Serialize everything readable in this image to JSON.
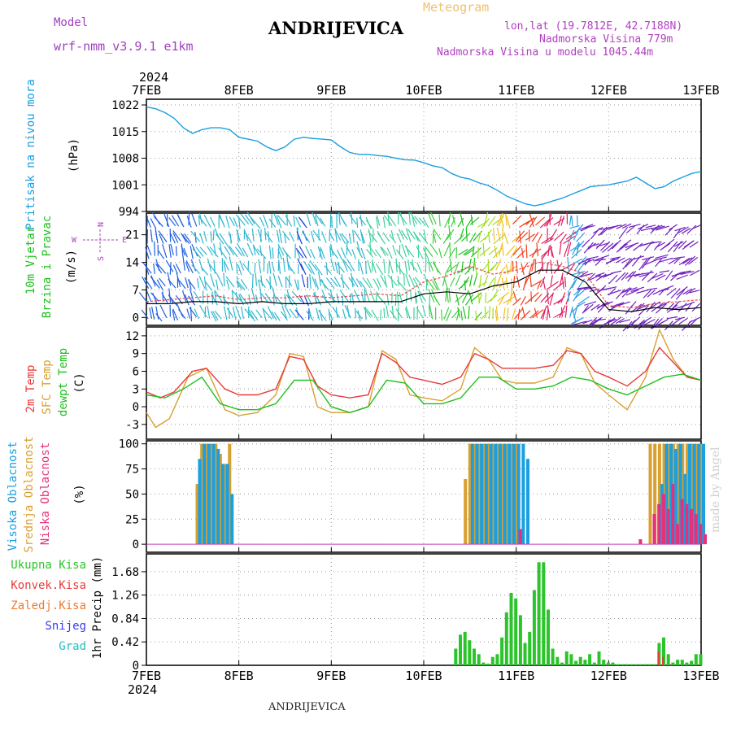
{
  "header": {
    "model_label": "Model",
    "model_name": "wrf-nmm_v3.9.1 e1km",
    "meteogram_label": "Meteogram",
    "location": "ANDRIJEVICA",
    "lonlat": "lon,lat (19.7812E, 42.7188N)",
    "elevation": "Nadmorska Visina 779m",
    "model_elevation": "Nadmorska Visina u modelu 1045.44m",
    "year": "2024",
    "footer_location": "ANDRIJEVICA",
    "credit": "made by Angel"
  },
  "colors": {
    "pressure": "#1a9fe0",
    "temp": "#e83a3a",
    "sfc": "#d9a030",
    "dewpt": "#1fbf1f",
    "rain": "#2bc42b",
    "conv": "#e83a3a",
    "freezing": "#f07a30",
    "snow": "#3a3af0",
    "hail": "#20c0c0",
    "cloud_high": "#1a9fe0",
    "cloud_mid": "#d9a030",
    "cloud_low": "#e8307a"
  },
  "chart_data": [
    {
      "type": "line",
      "panel": "pressure",
      "ylabels": [
        "Pritisak na nivou mora",
        "(hPa)"
      ],
      "x_ticks": [
        "7FEB",
        "8FEB",
        "9FEB",
        "10FEB",
        "11FEB",
        "12FEB",
        "13FEB"
      ],
      "y_ticks": [
        994,
        1001,
        1008,
        1015,
        1022
      ],
      "ylim": [
        994,
        1023.5
      ],
      "series": [
        {
          "name": "",
          "x": [
            0,
            0.1,
            0.2,
            0.3,
            0.4,
            0.5,
            0.6,
            0.7,
            0.8,
            0.9,
            1.0,
            1.1,
            1.2,
            1.3,
            1.4,
            1.5,
            1.6,
            1.7,
            1.8,
            1.9,
            2.0,
            2.1,
            2.2,
            2.3,
            2.4,
            2.5,
            2.6,
            2.7,
            2.8,
            2.9,
            3.0,
            3.1,
            3.2,
            3.3,
            3.4,
            3.5,
            3.6,
            3.7,
            3.8,
            3.9,
            4.0,
            4.1,
            4.2,
            4.3,
            4.4,
            4.5,
            4.6,
            4.7,
            4.8,
            4.9,
            5.0,
            5.1,
            5.2,
            5.3,
            5.4,
            5.5,
            5.6,
            5.7,
            5.8,
            5.9,
            6.0
          ],
          "values": [
            1021.5,
            1021,
            1020,
            1018.5,
            1016,
            1014.5,
            1015.5,
            1016,
            1016,
            1015.5,
            1013.5,
            1013,
            1012.5,
            1011,
            1010,
            1011,
            1013,
            1013.5,
            1013.2,
            1013,
            1012.8,
            1011,
            1009.5,
            1009,
            1009,
            1008.7,
            1008.5,
            1008,
            1007.6,
            1007.5,
            1006.8,
            1006,
            1005.5,
            1004,
            1003,
            1002.5,
            1001.5,
            1000.8,
            999.5,
            998,
            997,
            996,
            995.5,
            996,
            996.8,
            997.5,
            998.5,
            999.5,
            1000.5,
            1000.8,
            1001,
            1001.5,
            1002,
            1003,
            1001.5,
            1000,
            1000.5,
            1002,
            1003,
            1004,
            1004.5
          ]
        }
      ]
    },
    {
      "type": "line",
      "panel": "wind",
      "ylabels": [
        "10m Vjetar",
        "Brzina i Pravac",
        "(m/s)"
      ],
      "direction_legend": [
        "N",
        "S",
        "W",
        "E"
      ],
      "y_ticks": [
        0,
        7,
        14,
        21
      ],
      "ylim": [
        -2,
        26.5
      ],
      "series": [
        {
          "name": "",
          "x": [
            0,
            0.25,
            0.5,
            0.75,
            1.0,
            1.25,
            1.5,
            1.75,
            2.0,
            2.25,
            2.5,
            2.75,
            3.0,
            3.25,
            3.5,
            3.75,
            4.0,
            4.25,
            4.5,
            4.75,
            5.0,
            5.25,
            5.5,
            5.75,
            6.0
          ],
          "values": [
            4,
            4.5,
            5,
            5.5,
            4.5,
            5,
            5,
            5.5,
            5,
            5.5,
            6,
            5.5,
            9,
            10.5,
            13,
            11,
            12,
            14,
            13,
            11,
            3,
            2.5,
            3.5,
            4,
            4.5
          ]
        },
        {
          "name": "",
          "x": [
            0,
            0.25,
            0.5,
            0.75,
            1.0,
            1.25,
            1.5,
            1.75,
            2.0,
            2.25,
            2.5,
            2.75,
            3.0,
            3.25,
            3.5,
            3.75,
            4.0,
            4.25,
            4.5,
            4.75,
            5.0,
            5.25,
            5.5,
            5.75,
            6.0
          ],
          "values": [
            3.5,
            3.5,
            4,
            4,
            3.5,
            4,
            3.5,
            3.5,
            4,
            4,
            4,
            4,
            6,
            6.5,
            6,
            8,
            9,
            12,
            12,
            9,
            2,
            1.5,
            2.5,
            2,
            2.5
          ]
        }
      ]
    },
    {
      "type": "line",
      "panel": "temperature",
      "ylabels": [
        "2m Temp",
        "SFC Temp",
        "dewpt Temp",
        "(C)"
      ],
      "y_ticks": [
        -3,
        0,
        3,
        6,
        9,
        12
      ],
      "ylim": [
        -5.5,
        13.5
      ],
      "series": [
        {
          "name": "2m Temp",
          "x": [
            0,
            0.15,
            0.3,
            0.5,
            0.65,
            0.85,
            1.0,
            1.2,
            1.4,
            1.55,
            1.7,
            1.85,
            2.0,
            2.2,
            2.4,
            2.55,
            2.7,
            2.85,
            3.0,
            3.2,
            3.4,
            3.55,
            3.7,
            3.85,
            4.0,
            4.2,
            4.4,
            4.55,
            4.7,
            4.85,
            5.0,
            5.2,
            5.4,
            5.55,
            5.7,
            5.85,
            6.0
          ],
          "values": [
            2.5,
            1.5,
            2.5,
            6,
            6.5,
            3,
            2,
            2,
            3,
            8.5,
            8,
            3.5,
            2,
            1.5,
            2,
            9,
            7.5,
            5,
            4.5,
            3.8,
            5,
            9,
            8,
            6.5,
            6.5,
            6.5,
            7,
            9.5,
            9,
            6,
            5,
            3.5,
            6,
            10,
            7.5,
            5,
            4.5
          ]
        },
        {
          "name": "SFC Temp",
          "x": [
            0,
            0.1,
            0.25,
            0.45,
            0.65,
            0.85,
            1.0,
            1.2,
            1.4,
            1.55,
            1.7,
            1.85,
            2.0,
            2.2,
            2.4,
            2.55,
            2.7,
            2.85,
            3.0,
            3.2,
            3.4,
            3.55,
            3.7,
            3.85,
            4.0,
            4.2,
            4.4,
            4.55,
            4.7,
            4.85,
            5.0,
            5.2,
            5.4,
            5.55,
            5.7,
            5.85,
            6.0
          ],
          "values": [
            -1,
            -3.5,
            -2,
            5,
            6.5,
            -0.5,
            -1.5,
            -1,
            2,
            9,
            8.5,
            0,
            -1,
            -1,
            0,
            9.5,
            8,
            2,
            1.5,
            1,
            3,
            10,
            8,
            4.5,
            4,
            4,
            5,
            10,
            9,
            4,
            2,
            -0.5,
            5,
            13,
            8,
            5,
            4.5
          ]
        },
        {
          "name": "dewpt Temp",
          "x": [
            0,
            0.2,
            0.4,
            0.6,
            0.8,
            1.0,
            1.2,
            1.4,
            1.6,
            1.8,
            2.0,
            2.2,
            2.4,
            2.6,
            2.8,
            3.0,
            3.2,
            3.4,
            3.6,
            3.8,
            4.0,
            4.2,
            4.4,
            4.6,
            4.8,
            5.0,
            5.2,
            5.4,
            5.6,
            5.8,
            6.0
          ],
          "values": [
            2,
            1.5,
            3,
            5,
            0.5,
            -0.5,
            -0.5,
            0.5,
            4.5,
            4.5,
            0,
            -1,
            0,
            4.5,
            4,
            0.5,
            0.5,
            1.5,
            5,
            5,
            3,
            3,
            3.5,
            5,
            4.5,
            3,
            2,
            3.5,
            5,
            5.5,
            4.5
          ]
        }
      ]
    },
    {
      "type": "bar",
      "panel": "clouds",
      "ylabels": [
        "Visoka Oblacnost",
        "Srednja Oblacnost",
        "Niska Oblacnost",
        "(%)"
      ],
      "y_ticks": [
        0,
        25,
        50,
        75,
        100
      ],
      "ylim": [
        -8,
        103
      ],
      "series": [
        {
          "name": "Visoka Oblacnost",
          "x": [
            0.55,
            0.6,
            0.65,
            0.7,
            0.75,
            0.8,
            0.85,
            0.9,
            3.5,
            3.55,
            3.6,
            3.65,
            3.7,
            3.75,
            3.8,
            3.85,
            3.9,
            3.95,
            4.0,
            4.05,
            4.1,
            5.55,
            5.6,
            5.65,
            5.7,
            5.75,
            5.8,
            5.85,
            5.9,
            5.95,
            6.0
          ],
          "values": [
            85,
            100,
            100,
            100,
            95,
            80,
            80,
            50,
            100,
            100,
            100,
            100,
            100,
            100,
            100,
            100,
            100,
            100,
            100,
            100,
            85,
            60,
            100,
            100,
            95,
            100,
            70,
            100,
            100,
            100,
            100
          ]
        },
        {
          "name": "Srednja Oblacnost",
          "x": [
            0.55,
            0.6,
            0.65,
            0.7,
            0.75,
            0.8,
            0.85,
            0.9,
            3.45,
            3.5,
            3.55,
            3.6,
            3.65,
            3.7,
            3.75,
            3.8,
            3.85,
            3.9,
            3.95,
            4.0,
            5.45,
            5.5,
            5.55,
            5.6,
            5.65,
            5.7,
            5.75,
            5.8,
            5.85,
            5.9,
            5.95,
            6.0
          ],
          "values": [
            60,
            100,
            100,
            100,
            100,
            90,
            80,
            100,
            65,
            100,
            100,
            100,
            100,
            100,
            100,
            100,
            100,
            100,
            100,
            100,
            100,
            100,
            100,
            100,
            100,
            100,
            100,
            100,
            100,
            100,
            100,
            100
          ]
        },
        {
          "name": "Niska Oblacnost",
          "x": [
            4.0,
            5.3,
            5.45,
            5.5,
            5.55,
            5.6,
            5.65,
            5.7,
            5.75,
            5.8,
            5.85,
            5.9,
            5.95,
            6.0
          ],
          "values": [
            15,
            5,
            30,
            40,
            50,
            35,
            60,
            20,
            45,
            40,
            35,
            30,
            20,
            10
          ]
        }
      ]
    },
    {
      "type": "bar",
      "panel": "precipitation",
      "ylabels": [
        "Ukupna Kisa",
        "Konvek.Kisa",
        "Zaledj.Kisa",
        "Snijeg",
        "Grad",
        "1hr Precip (mm)"
      ],
      "y_ticks": [
        "0",
        "0.42",
        "0.84",
        "1.26",
        "1.68"
      ],
      "ylim": [
        0,
        2.0
      ],
      "series": [
        {
          "name": "Ukupna Kisa",
          "x": [
            3.35,
            3.4,
            3.45,
            3.5,
            3.55,
            3.6,
            3.65,
            3.7,
            3.75,
            3.8,
            3.85,
            3.9,
            3.95,
            4.0,
            4.05,
            4.1,
            4.15,
            4.2,
            4.25,
            4.3,
            4.35,
            4.4,
            4.45,
            4.5,
            4.55,
            4.6,
            4.65,
            4.7,
            4.75,
            4.8,
            4.85,
            4.9,
            4.95,
            5.0,
            5.05,
            5.1,
            5.15,
            5.2,
            5.25,
            5.3,
            5.35,
            5.4,
            5.45,
            5.5,
            5.55,
            5.6,
            5.65,
            5.7,
            5.75,
            5.8,
            5.85,
            5.9,
            5.95,
            6.0
          ],
          "values": [
            0.3,
            0.55,
            0.6,
            0.45,
            0.3,
            0.2,
            0.05,
            0.03,
            0.15,
            0.2,
            0.5,
            0.95,
            1.3,
            1.2,
            0.9,
            0.4,
            0.6,
            1.35,
            1.85,
            1.85,
            1.0,
            0.3,
            0.15,
            0.05,
            0.25,
            0.2,
            0.08,
            0.15,
            0.1,
            0.2,
            0.05,
            0.25,
            0.1,
            0.05,
            0.05,
            0.02,
            0.02,
            0.02,
            0.02,
            0.02,
            0.02,
            0.02,
            0.02,
            0.02,
            0.4,
            0.5,
            0.2,
            0.05,
            0.1,
            0.1,
            0.05,
            0.08,
            0.2,
            0.2
          ]
        },
        {
          "name": "Konvek.Kisa",
          "x": [
            5.55,
            5.6
          ],
          "values": [
            0.25,
            0.15
          ]
        }
      ]
    }
  ]
}
